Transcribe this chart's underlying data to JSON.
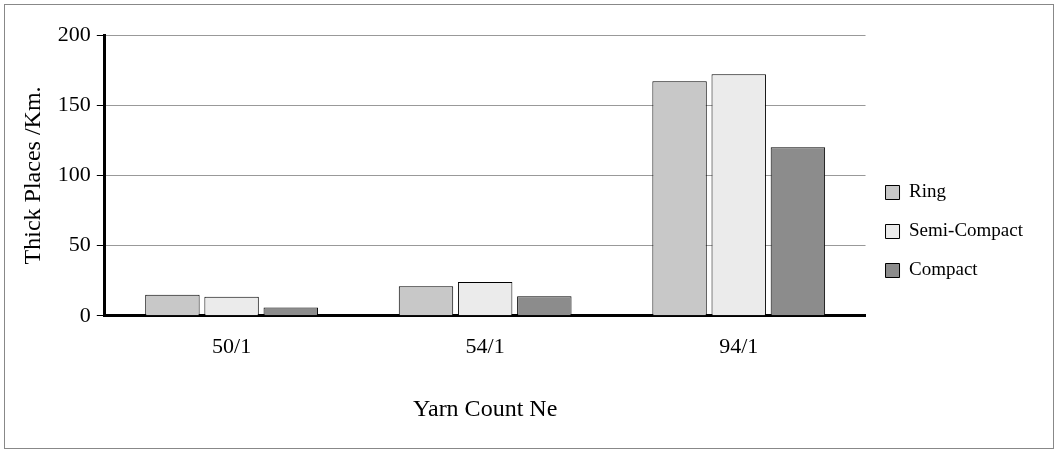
{
  "chart_data": {
    "type": "bar",
    "xlabel": "Yarn Count Ne",
    "ylabel": "Thick Places /Km.",
    "categories": [
      "50/1",
      "54/1",
      "94/1"
    ],
    "series": [
      {
        "name": "Ring",
        "color": "#c8c8c8",
        "values": [
          15,
          21,
          167
        ]
      },
      {
        "name": "Semi-Compact",
        "color": "#ebebeb",
        "values": [
          13.5,
          24,
          172
        ]
      },
      {
        "name": "Compact",
        "color": "#8c8c8c",
        "values": [
          6,
          14,
          120
        ]
      }
    ],
    "ylim": [
      0,
      200
    ],
    "yticks": [
      0,
      50,
      100,
      150,
      200
    ],
    "grid": "y",
    "legend": "right"
  }
}
